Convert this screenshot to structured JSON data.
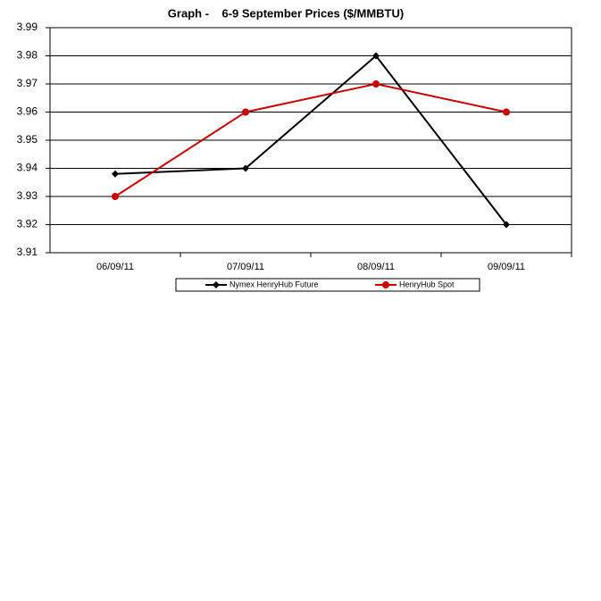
{
  "chart_data": {
    "type": "line",
    "title": "Graph -    6-9 September Prices ($/MMBTU)",
    "categories": [
      "06/09/11",
      "07/09/11",
      "08/09/11",
      "09/09/11"
    ],
    "series": [
      {
        "name": "Nymex HenryHub Future",
        "color": "#000000",
        "marker": "diamond",
        "values": [
          3.938,
          3.94,
          3.98,
          3.92
        ]
      },
      {
        "name": "HenryHub Spot",
        "color": "#cc0000",
        "marker": "circle",
        "values": [
          3.93,
          3.96,
          3.97,
          3.96
        ]
      }
    ],
    "ylim": [
      3.91,
      3.99
    ],
    "yticks": [
      3.91,
      3.92,
      3.93,
      3.94,
      3.95,
      3.96,
      3.97,
      3.98,
      3.99
    ],
    "grid": true,
    "legend": "bottom"
  }
}
